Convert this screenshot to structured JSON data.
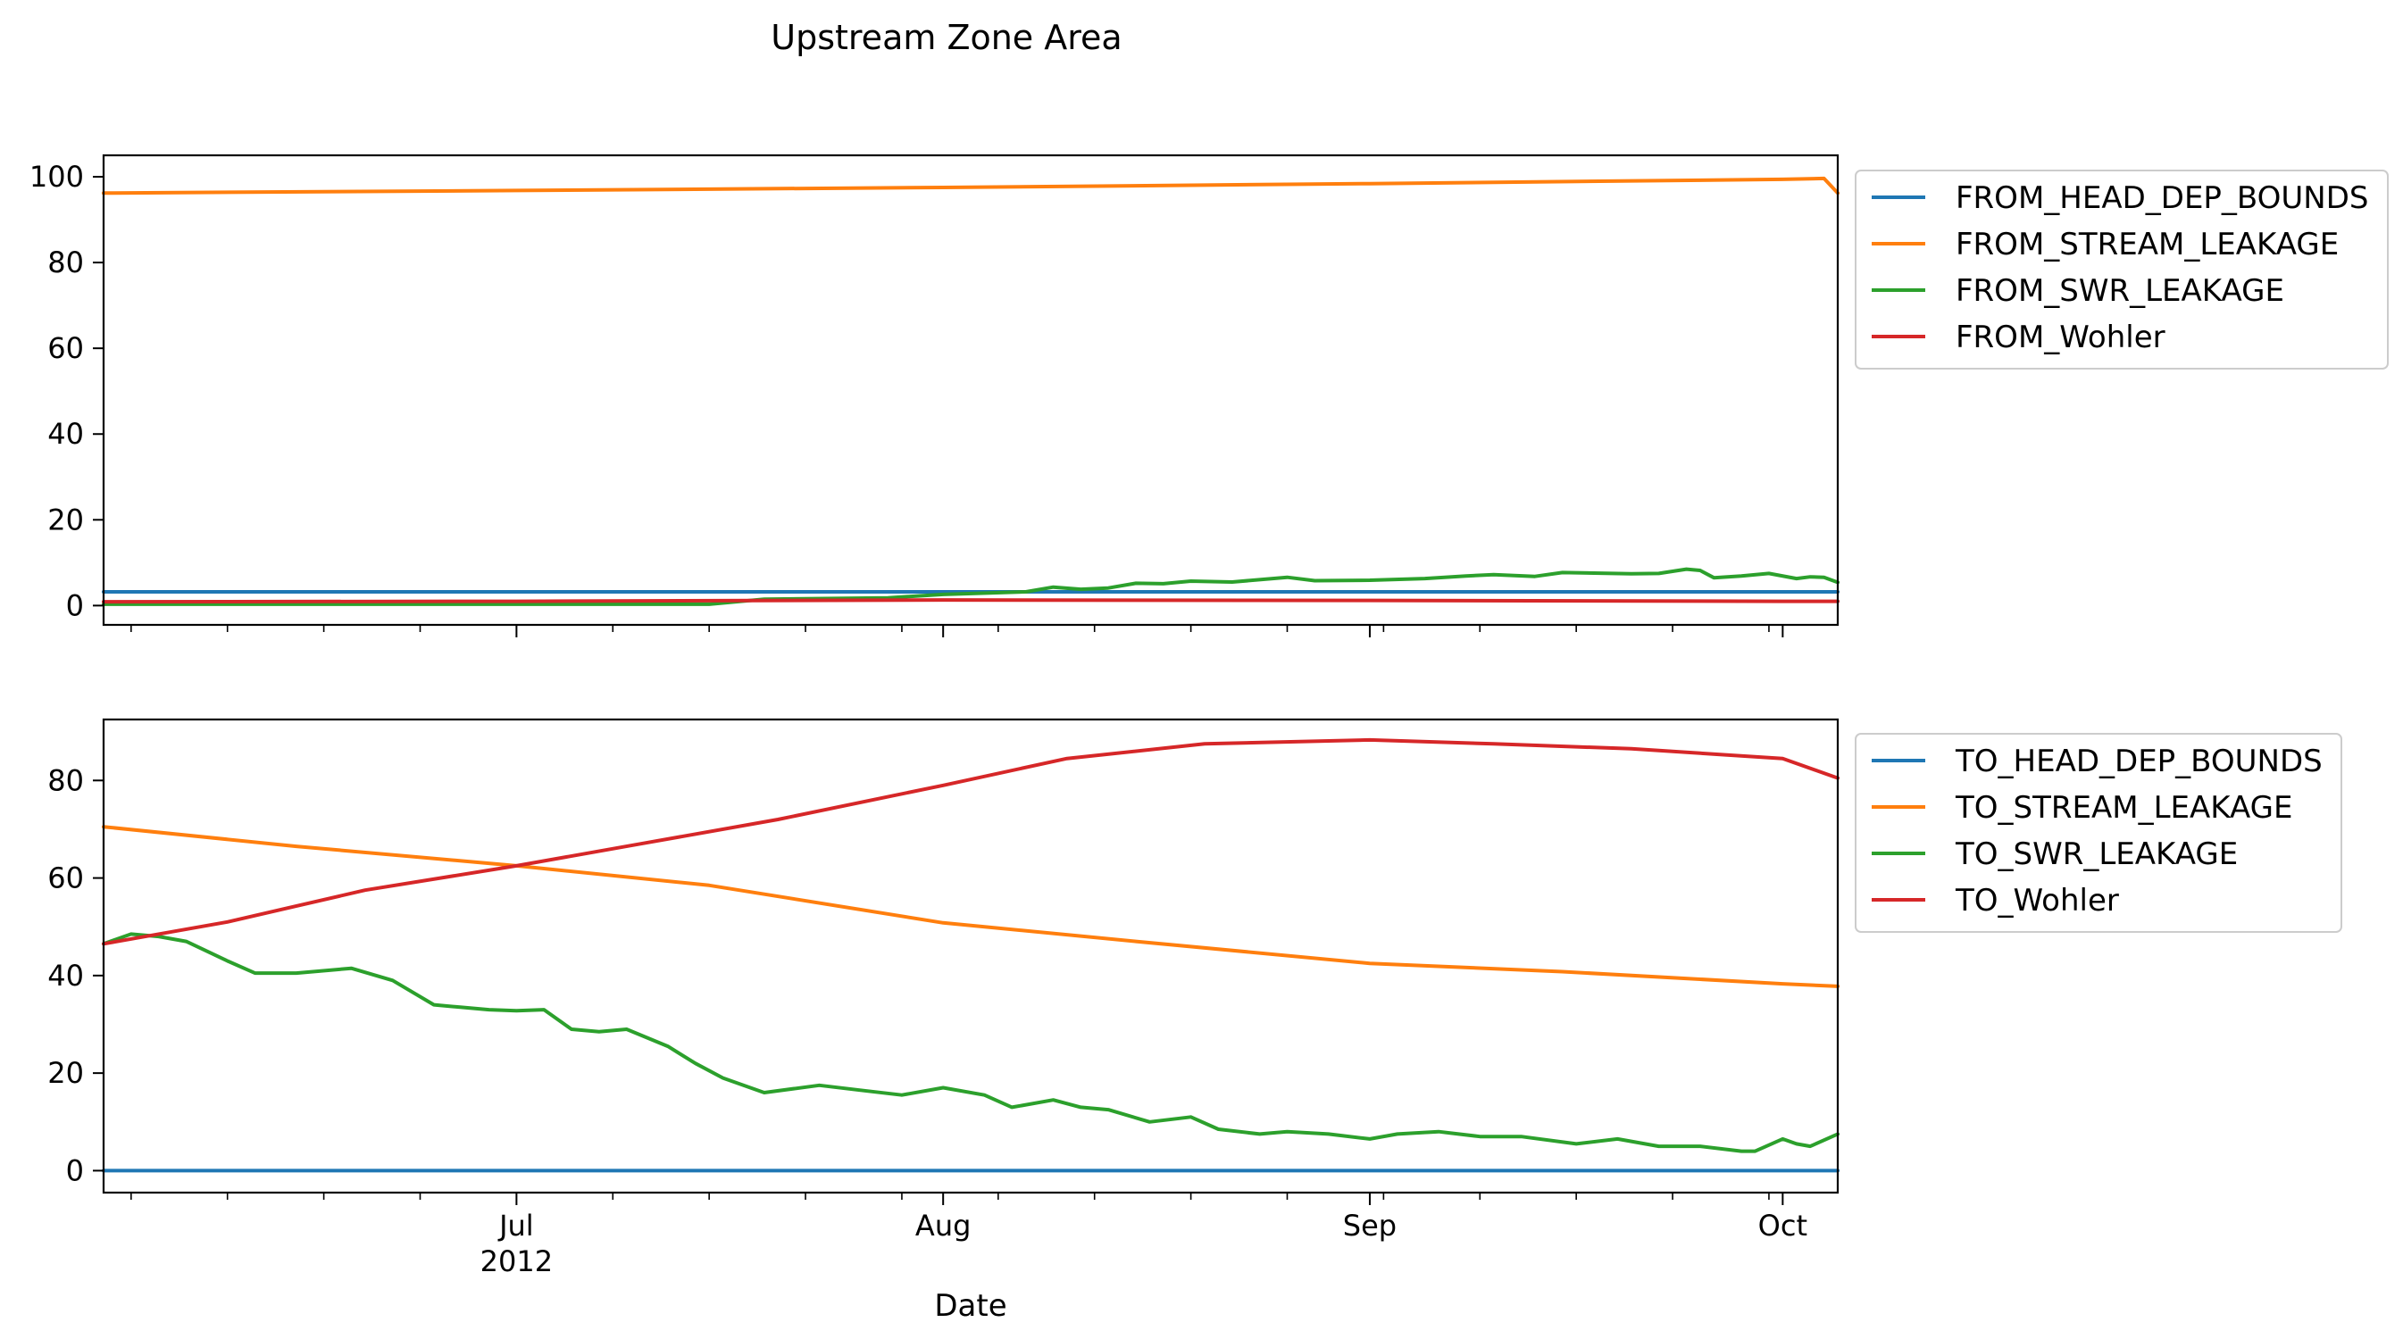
{
  "chart_data": {
    "type": "line",
    "title": "Upstream Zone Area",
    "xlabel": "Date",
    "x_axis": {
      "start": "2012-06-01",
      "end": "2012-10-05",
      "major_ticks": [
        {
          "date": "2012-07-01",
          "label": "Jul",
          "sublabel": "2012"
        },
        {
          "date": "2012-08-01",
          "label": "Aug",
          "sublabel": ""
        },
        {
          "date": "2012-09-01",
          "label": "Sep",
          "sublabel": ""
        },
        {
          "date": "2012-10-01",
          "label": "Oct",
          "sublabel": ""
        }
      ]
    },
    "legend_placement": "outside-upper-right",
    "grid": false,
    "panels": [
      {
        "ylim": [
          -4.5,
          105
        ],
        "yticks": [
          0,
          20,
          40,
          60,
          80,
          100
        ],
        "series": [
          {
            "name": "FROM_HEAD_DEP_BOUNDS",
            "color": "#1f77b4",
            "points": [
              [
                "2012-06-01",
                3.2
              ],
              [
                "2012-10-05",
                3.2
              ]
            ]
          },
          {
            "name": "FROM_STREAM_LEAKAGE",
            "color": "#ff7f0e",
            "points": [
              [
                "2012-06-01",
                96.2
              ],
              [
                "2012-07-01",
                96.8
              ],
              [
                "2012-08-01",
                97.5
              ],
              [
                "2012-09-01",
                98.4
              ],
              [
                "2012-10-01",
                99.4
              ],
              [
                "2012-10-04",
                99.6
              ],
              [
                "2012-10-05",
                96.2
              ]
            ]
          },
          {
            "name": "FROM_SWR_LEAKAGE",
            "color": "#2ca02c",
            "points": [
              [
                "2012-06-01",
                0.3
              ],
              [
                "2012-07-01",
                0.3
              ],
              [
                "2012-07-15",
                0.3
              ],
              [
                "2012-07-19",
                1.5
              ],
              [
                "2012-07-28",
                1.8
              ],
              [
                "2012-08-01",
                2.6
              ],
              [
                "2012-08-07",
                3.2
              ],
              [
                "2012-08-09",
                4.3
              ],
              [
                "2012-08-11",
                3.8
              ],
              [
                "2012-08-13",
                4.1
              ],
              [
                "2012-08-15",
                5.2
              ],
              [
                "2012-08-17",
                5.1
              ],
              [
                "2012-08-19",
                5.7
              ],
              [
                "2012-08-22",
                5.5
              ],
              [
                "2012-08-26",
                6.6
              ],
              [
                "2012-08-28",
                5.8
              ],
              [
                "2012-09-01",
                5.9
              ],
              [
                "2012-09-05",
                6.3
              ],
              [
                "2012-09-08",
                6.9
              ],
              [
                "2012-09-10",
                7.2
              ],
              [
                "2012-09-13",
                6.8
              ],
              [
                "2012-09-15",
                7.7
              ],
              [
                "2012-09-20",
                7.4
              ],
              [
                "2012-09-22",
                7.5
              ],
              [
                "2012-09-24",
                8.5
              ],
              [
                "2012-09-25",
                8.2
              ],
              [
                "2012-09-26",
                6.5
              ],
              [
                "2012-09-28",
                6.9
              ],
              [
                "2012-09-30",
                7.5
              ],
              [
                "2012-10-02",
                6.3
              ],
              [
                "2012-10-03",
                6.7
              ],
              [
                "2012-10-04",
                6.6
              ],
              [
                "2012-10-05",
                5.4
              ]
            ]
          },
          {
            "name": "FROM_Wohler",
            "color": "#d62728",
            "points": [
              [
                "2012-06-01",
                0.9
              ],
              [
                "2012-07-01",
                1.0
              ],
              [
                "2012-08-01",
                1.3
              ],
              [
                "2012-09-01",
                1.2
              ],
              [
                "2012-10-01",
                1.0
              ],
              [
                "2012-10-05",
                1.0
              ]
            ]
          }
        ]
      },
      {
        "ylim": [
          -4.5,
          92.5
        ],
        "yticks": [
          0,
          20,
          40,
          60,
          80
        ],
        "series": [
          {
            "name": "TO_HEAD_DEP_BOUNDS",
            "color": "#1f77b4",
            "points": [
              [
                "2012-06-01",
                0
              ],
              [
                "2012-10-05",
                0
              ]
            ]
          },
          {
            "name": "TO_STREAM_LEAKAGE",
            "color": "#ff7f0e",
            "points": [
              [
                "2012-06-01",
                70.5
              ],
              [
                "2012-06-15",
                66.5
              ],
              [
                "2012-07-01",
                62.5
              ],
              [
                "2012-07-15",
                58.5
              ],
              [
                "2012-08-01",
                50.8
              ],
              [
                "2012-08-15",
                47.0
              ],
              [
                "2012-09-01",
                42.5
              ],
              [
                "2012-09-15",
                40.8
              ],
              [
                "2012-10-01",
                38.3
              ],
              [
                "2012-10-05",
                37.8
              ]
            ]
          },
          {
            "name": "TO_SWR_LEAKAGE",
            "color": "#2ca02c",
            "points": [
              [
                "2012-06-01",
                46.5
              ],
              [
                "2012-06-03",
                48.5
              ],
              [
                "2012-06-05",
                48.0
              ],
              [
                "2012-06-07",
                47.0
              ],
              [
                "2012-06-10",
                43.0
              ],
              [
                "2012-06-12",
                40.5
              ],
              [
                "2012-06-15",
                40.5
              ],
              [
                "2012-06-19",
                41.5
              ],
              [
                "2012-06-22",
                39.0
              ],
              [
                "2012-06-25",
                34.0
              ],
              [
                "2012-06-27",
                33.5
              ],
              [
                "2012-06-29",
                33.0
              ],
              [
                "2012-07-01",
                32.8
              ],
              [
                "2012-07-03",
                33.0
              ],
              [
                "2012-07-05",
                29.0
              ],
              [
                "2012-07-07",
                28.5
              ],
              [
                "2012-07-09",
                29.0
              ],
              [
                "2012-07-12",
                25.5
              ],
              [
                "2012-07-14",
                22.0
              ],
              [
                "2012-07-16",
                19.0
              ],
              [
                "2012-07-19",
                16.0
              ],
              [
                "2012-07-23",
                17.5
              ],
              [
                "2012-07-26",
                16.5
              ],
              [
                "2012-07-29",
                15.5
              ],
              [
                "2012-08-01",
                17.0
              ],
              [
                "2012-08-04",
                15.5
              ],
              [
                "2012-08-06",
                13.0
              ],
              [
                "2012-08-09",
                14.5
              ],
              [
                "2012-08-11",
                13.0
              ],
              [
                "2012-08-13",
                12.5
              ],
              [
                "2012-08-16",
                10.0
              ],
              [
                "2012-08-19",
                11.0
              ],
              [
                "2012-08-21",
                8.5
              ],
              [
                "2012-08-24",
                7.5
              ],
              [
                "2012-08-26",
                8.0
              ],
              [
                "2012-08-29",
                7.5
              ],
              [
                "2012-09-01",
                6.5
              ],
              [
                "2012-09-03",
                7.5
              ],
              [
                "2012-09-06",
                8.0
              ],
              [
                "2012-09-09",
                7.0
              ],
              [
                "2012-09-12",
                7.0
              ],
              [
                "2012-09-16",
                5.5
              ],
              [
                "2012-09-19",
                6.5
              ],
              [
                "2012-09-22",
                5.0
              ],
              [
                "2012-09-25",
                5.0
              ],
              [
                "2012-09-28",
                4.0
              ],
              [
                "2012-09-29",
                4.0
              ],
              [
                "2012-10-01",
                6.5
              ],
              [
                "2012-10-02",
                5.5
              ],
              [
                "2012-10-03",
                5.0
              ],
              [
                "2012-10-05",
                7.5
              ]
            ]
          },
          {
            "name": "TO_Wohler",
            "color": "#d62728",
            "points": [
              [
                "2012-06-01",
                46.5
              ],
              [
                "2012-06-10",
                51.0
              ],
              [
                "2012-06-20",
                57.5
              ],
              [
                "2012-07-01",
                62.5
              ],
              [
                "2012-07-10",
                67.0
              ],
              [
                "2012-07-20",
                72.0
              ],
              [
                "2012-08-01",
                79.0
              ],
              [
                "2012-08-10",
                84.5
              ],
              [
                "2012-08-20",
                87.5
              ],
              [
                "2012-09-01",
                88.3
              ],
              [
                "2012-09-10",
                87.5
              ],
              [
                "2012-09-20",
                86.5
              ],
              [
                "2012-10-01",
                84.5
              ],
              [
                "2012-10-05",
                80.5
              ]
            ]
          }
        ]
      }
    ]
  }
}
